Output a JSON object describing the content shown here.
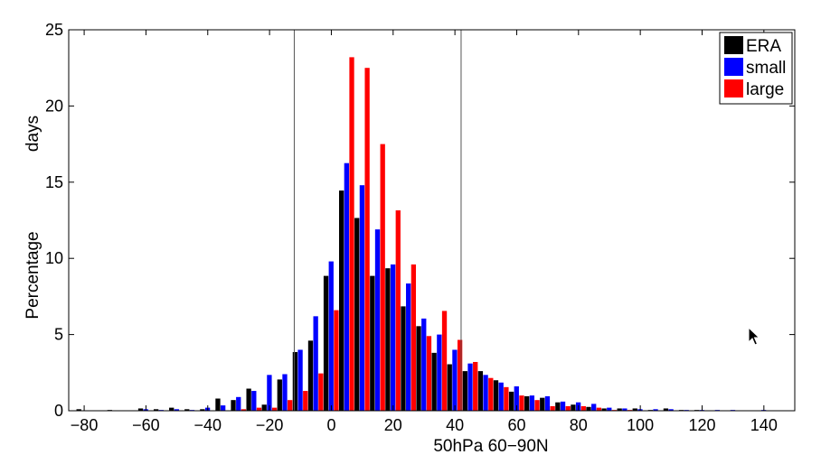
{
  "chart_data": {
    "type": "bar",
    "title": "",
    "xlabel": "50hPa 60−90N",
    "ylabel": [
      "Percentage",
      "days"
    ],
    "xlim": [
      -85,
      150
    ],
    "ylim": [
      0,
      25
    ],
    "xticks": [
      -80,
      -60,
      -40,
      -20,
      0,
      20,
      40,
      60,
      80,
      100,
      120,
      140
    ],
    "yticks": [
      0,
      5,
      10,
      15,
      20,
      25
    ],
    "xtick_labels": [
      "−80",
      "−60",
      "−40",
      "−20",
      "0",
      "20",
      "40",
      "60",
      "80",
      "100",
      "120",
      "140"
    ],
    "ytick_labels": [
      "0",
      "5",
      "10",
      "15",
      "20",
      "25"
    ],
    "bin_width": 5,
    "vertical_lines": [
      -12,
      42
    ],
    "grid": false,
    "legend_position": "top-right",
    "x": [
      -80,
      -75,
      -70,
      -65,
      -60,
      -55,
      -50,
      -45,
      -40,
      -35,
      -30,
      -25,
      -20,
      -15,
      -10,
      -5,
      0,
      5,
      10,
      15,
      20,
      25,
      30,
      35,
      40,
      45,
      50,
      55,
      60,
      65,
      70,
      75,
      80,
      85,
      90,
      95,
      100,
      105,
      110,
      115,
      120,
      125,
      130,
      135,
      140
    ],
    "series": [
      {
        "name": "ERA",
        "color": "#000000",
        "values": [
          0.1,
          0,
          0.05,
          0,
          0.15,
          0.1,
          0.2,
          0.1,
          0.1,
          0.8,
          0.7,
          1.45,
          0.4,
          2.05,
          3.85,
          4.6,
          8.85,
          14.45,
          12.65,
          8.85,
          9.35,
          6.85,
          5.55,
          3.8,
          3.05,
          2.6,
          2.6,
          2.0,
          1.25,
          0.95,
          0.85,
          0.55,
          0.4,
          0.25,
          0.15,
          0.15,
          0.15,
          0.05,
          0.15,
          0.05,
          0.05,
          0,
          0,
          0,
          0
        ]
      },
      {
        "name": "small",
        "color": "#0000ff",
        "values": [
          0,
          0,
          0,
          0,
          0.1,
          0.05,
          0.1,
          0.05,
          0.2,
          0.35,
          0.9,
          1.3,
          2.35,
          2.4,
          4.0,
          6.2,
          9.8,
          16.25,
          14.8,
          11.9,
          9.6,
          8.35,
          6.05,
          5.0,
          4.0,
          3.1,
          2.35,
          1.85,
          1.6,
          1.0,
          0.95,
          0.6,
          0.55,
          0.45,
          0.2,
          0.15,
          0.1,
          0.1,
          0.1,
          0.05,
          0.05,
          0.05,
          0.05,
          0,
          0.05
        ]
      },
      {
        "name": "large",
        "color": "#ff0000",
        "values": [
          0,
          0,
          0,
          0,
          0,
          0,
          0,
          0,
          0,
          0,
          0.1,
          0.2,
          0.2,
          0.7,
          1.3,
          2.45,
          6.6,
          23.2,
          22.5,
          17.5,
          13.15,
          9.6,
          4.9,
          6.55,
          4.65,
          3.2,
          2.15,
          1.55,
          1.0,
          0.7,
          0.3,
          0.3,
          0.3,
          0.2,
          0.05,
          0.05,
          0,
          0,
          0,
          0,
          0,
          0,
          0,
          0,
          0
        ]
      }
    ]
  }
}
